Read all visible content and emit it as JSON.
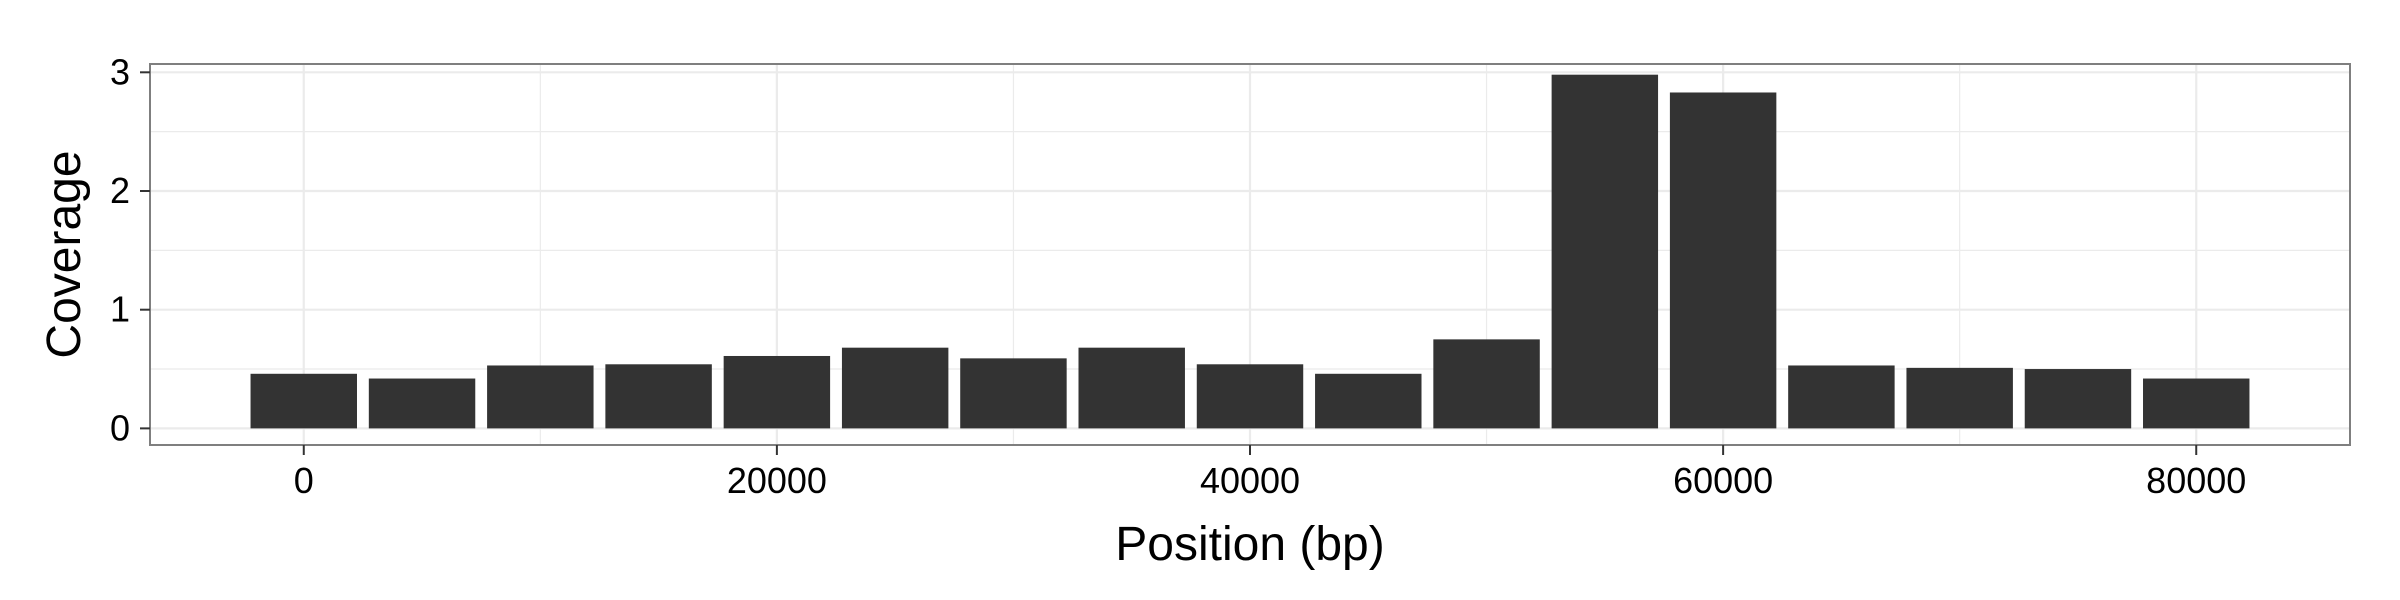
{
  "chart_data": {
    "type": "bar",
    "title": "",
    "xlabel": "Position (bp)",
    "ylabel": "Coverage",
    "xlim": [
      -6500,
      86500
    ],
    "ylim": [
      -0.14,
      3.07
    ],
    "x_ticks": [
      0,
      20000,
      40000,
      60000,
      80000
    ],
    "x_tick_labels": [
      "0",
      "20000",
      "40000",
      "60000",
      "80000"
    ],
    "y_ticks": [
      0,
      1,
      2,
      3
    ],
    "y_tick_labels": [
      "0",
      "1",
      "2",
      "3"
    ],
    "bar_width": 4500,
    "x": [
      0,
      5000,
      10000,
      15000,
      20000,
      25000,
      30000,
      35000,
      40000,
      45000,
      50000,
      55000,
      60000,
      65000,
      70000,
      75000,
      80000
    ],
    "values": [
      0.46,
      0.42,
      0.53,
      0.54,
      0.61,
      0.68,
      0.59,
      0.68,
      0.54,
      0.46,
      0.75,
      2.98,
      2.83,
      0.53,
      0.51,
      0.5,
      0.42
    ],
    "grid": true,
    "bar_color": "#333333",
    "grid_color": "#ebebeb",
    "panel_border_color": "#7f7f7f"
  }
}
